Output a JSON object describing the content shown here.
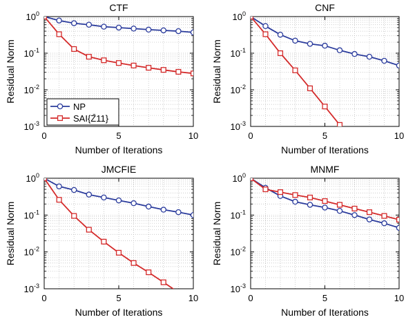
{
  "chart_data": [
    {
      "type": "line",
      "title": "CTF",
      "xlabel": "Number of Iterations",
      "ylabel": "Residual Norm",
      "xlim": [
        0,
        10
      ],
      "ylim": [
        0.001,
        1
      ],
      "yscale": "log",
      "xticks": [
        "0",
        "5",
        "10"
      ],
      "yticks": [
        0.001,
        0.01,
        0.1,
        1
      ],
      "grid": "dotted",
      "legend": "bottom-left",
      "series": [
        {
          "name": "NP",
          "color": "#2a3b9c",
          "marker": "circle",
          "x": [
            0,
            1,
            2,
            3,
            4,
            5,
            6,
            7,
            8,
            9,
            10
          ],
          "y": [
            1,
            0.78,
            0.66,
            0.6,
            0.53,
            0.5,
            0.47,
            0.44,
            0.42,
            0.4,
            0.37
          ]
        },
        {
          "name": "SAI{Z̄11}",
          "color": "#d42a2a",
          "marker": "square",
          "x": [
            0,
            1,
            2,
            3,
            4,
            5,
            6,
            7,
            8,
            9,
            10
          ],
          "y": [
            1,
            0.33,
            0.13,
            0.08,
            0.064,
            0.054,
            0.046,
            0.04,
            0.035,
            0.031,
            0.028
          ]
        }
      ]
    },
    {
      "type": "line",
      "title": "CNF",
      "xlabel": "Number of Iterations",
      "ylabel": "Residual Norm",
      "xlim": [
        0,
        10
      ],
      "ylim": [
        0.001,
        1
      ],
      "yscale": "log",
      "xticks": [
        "0",
        "5",
        "10"
      ],
      "yticks": [
        0.001,
        0.01,
        0.1,
        1
      ],
      "grid": "dotted",
      "series": [
        {
          "name": "NP",
          "color": "#2a3b9c",
          "marker": "circle",
          "x": [
            0,
            1,
            2,
            3,
            4,
            5,
            6,
            7,
            8,
            9,
            10
          ],
          "y": [
            1,
            0.55,
            0.32,
            0.22,
            0.18,
            0.16,
            0.12,
            0.095,
            0.08,
            0.062,
            0.046
          ]
        },
        {
          "name": "SAI{Z̄11}",
          "color": "#d42a2a",
          "marker": "square",
          "x": [
            0,
            1,
            2,
            3,
            4,
            5,
            6
          ],
          "y": [
            1,
            0.33,
            0.1,
            0.034,
            0.011,
            0.0035,
            0.0011
          ]
        }
      ]
    },
    {
      "type": "line",
      "title": "JMCFIE",
      "xlabel": "Number of Iterations",
      "ylabel": "Residual Norm",
      "xlim": [
        0,
        10
      ],
      "ylim": [
        0.001,
        1
      ],
      "yscale": "log",
      "xticks": [
        "0",
        "5",
        "10"
      ],
      "yticks": [
        0.001,
        0.01,
        0.1,
        1
      ],
      "grid": "dotted",
      "series": [
        {
          "name": "NP",
          "color": "#2a3b9c",
          "marker": "circle",
          "x": [
            0,
            1,
            2,
            3,
            4,
            5,
            6,
            7,
            8,
            9,
            10
          ],
          "y": [
            1,
            0.6,
            0.48,
            0.36,
            0.3,
            0.25,
            0.21,
            0.17,
            0.14,
            0.12,
            0.1
          ]
        },
        {
          "name": "SAI{Z̄11}",
          "color": "#d42a2a",
          "marker": "square",
          "x": [
            0,
            1,
            2,
            3,
            4,
            5,
            6,
            7,
            8,
            9
          ],
          "y": [
            1,
            0.26,
            0.095,
            0.04,
            0.019,
            0.0095,
            0.005,
            0.0028,
            0.0015,
            0.0008
          ]
        }
      ]
    },
    {
      "type": "line",
      "title": "MNMF",
      "xlabel": "Number of Iterations",
      "ylabel": "Residual Norm",
      "xlim": [
        0,
        10
      ],
      "ylim": [
        0.001,
        1
      ],
      "yscale": "log",
      "xticks": [
        "0",
        "5",
        "10"
      ],
      "yticks": [
        0.001,
        0.01,
        0.1,
        1
      ],
      "grid": "dotted",
      "series": [
        {
          "name": "NP",
          "color": "#2a3b9c",
          "marker": "circle",
          "x": [
            0,
            1,
            2,
            3,
            4,
            5,
            6,
            7,
            8,
            9,
            10
          ],
          "y": [
            1,
            0.55,
            0.33,
            0.23,
            0.19,
            0.16,
            0.13,
            0.1,
            0.076,
            0.06,
            0.045
          ]
        },
        {
          "name": "SAI{Z̄11}",
          "color": "#d42a2a",
          "marker": "square",
          "x": [
            0,
            1,
            2,
            3,
            4,
            5,
            6,
            7,
            8,
            9,
            10
          ],
          "y": [
            1,
            0.5,
            0.42,
            0.35,
            0.3,
            0.24,
            0.19,
            0.15,
            0.12,
            0.095,
            0.075
          ]
        }
      ]
    }
  ]
}
